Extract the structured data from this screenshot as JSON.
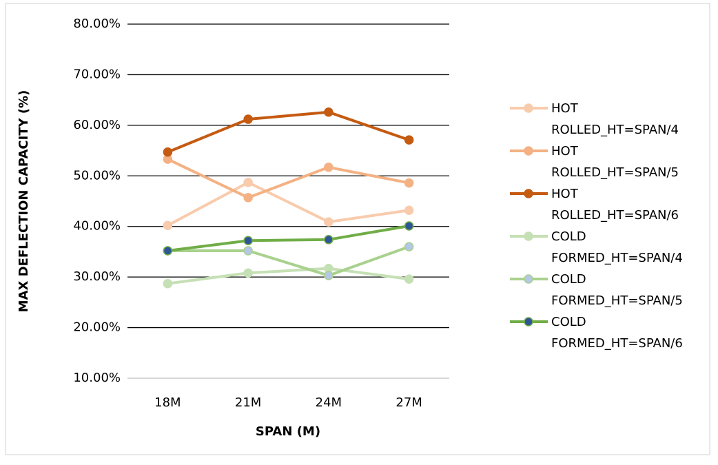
{
  "chart_data": {
    "type": "line",
    "y_label": "MAX  DEFLECTION CAPACITY  (%)",
    "x_label": "SPAN (M)",
    "categories": [
      "18M",
      "21M",
      "24M",
      "27M"
    ],
    "ylim": [
      10,
      80
    ],
    "yticks": [
      {
        "value": 10,
        "label": "10.00%"
      },
      {
        "value": 20,
        "label": "20.00%"
      },
      {
        "value": 30,
        "label": "30.00%"
      },
      {
        "value": 40,
        "label": "40.00%"
      },
      {
        "value": 50,
        "label": "50.00%"
      },
      {
        "value": 60,
        "label": "60.00%"
      },
      {
        "value": 70,
        "label": "70.00%"
      },
      {
        "value": 80,
        "label": "80.00%"
      }
    ],
    "grid": true,
    "legend": "right",
    "series": [
      {
        "name": "HOT ROLLED_HT=SPAN/4",
        "color": "#f8cbad",
        "marker_color": "#f8cbad",
        "values": [
          40.2,
          48.7,
          40.9,
          43.2
        ]
      },
      {
        "name": "HOT ROLLED_HT=SPAN/5",
        "color": "#f4b183",
        "marker_color": "#f4b183",
        "values": [
          53.3,
          45.7,
          51.7,
          48.6
        ]
      },
      {
        "name": "HOT ROLLED_HT=SPAN/6",
        "color": "#c55a11",
        "marker_color": "#c55a11",
        "values": [
          54.7,
          61.2,
          62.6,
          57.1
        ]
      },
      {
        "name": "COLD FORMED_HT=SPAN/4",
        "color": "#c5e0b4",
        "marker_color": "#c5e0b4",
        "values": [
          28.7,
          30.8,
          31.7,
          29.6
        ]
      },
      {
        "name": "COLD FORMED_HT=SPAN/5",
        "color": "#a9d18e",
        "marker_color": "#b4c7e7",
        "values": [
          35.2,
          35.2,
          30.3,
          36.0
        ]
      },
      {
        "name": "COLD FORMED_HT=SPAN/6",
        "color": "#70ad47",
        "marker_color": "#2f5597",
        "values": [
          35.2,
          37.2,
          37.4,
          40.1
        ]
      }
    ]
  }
}
